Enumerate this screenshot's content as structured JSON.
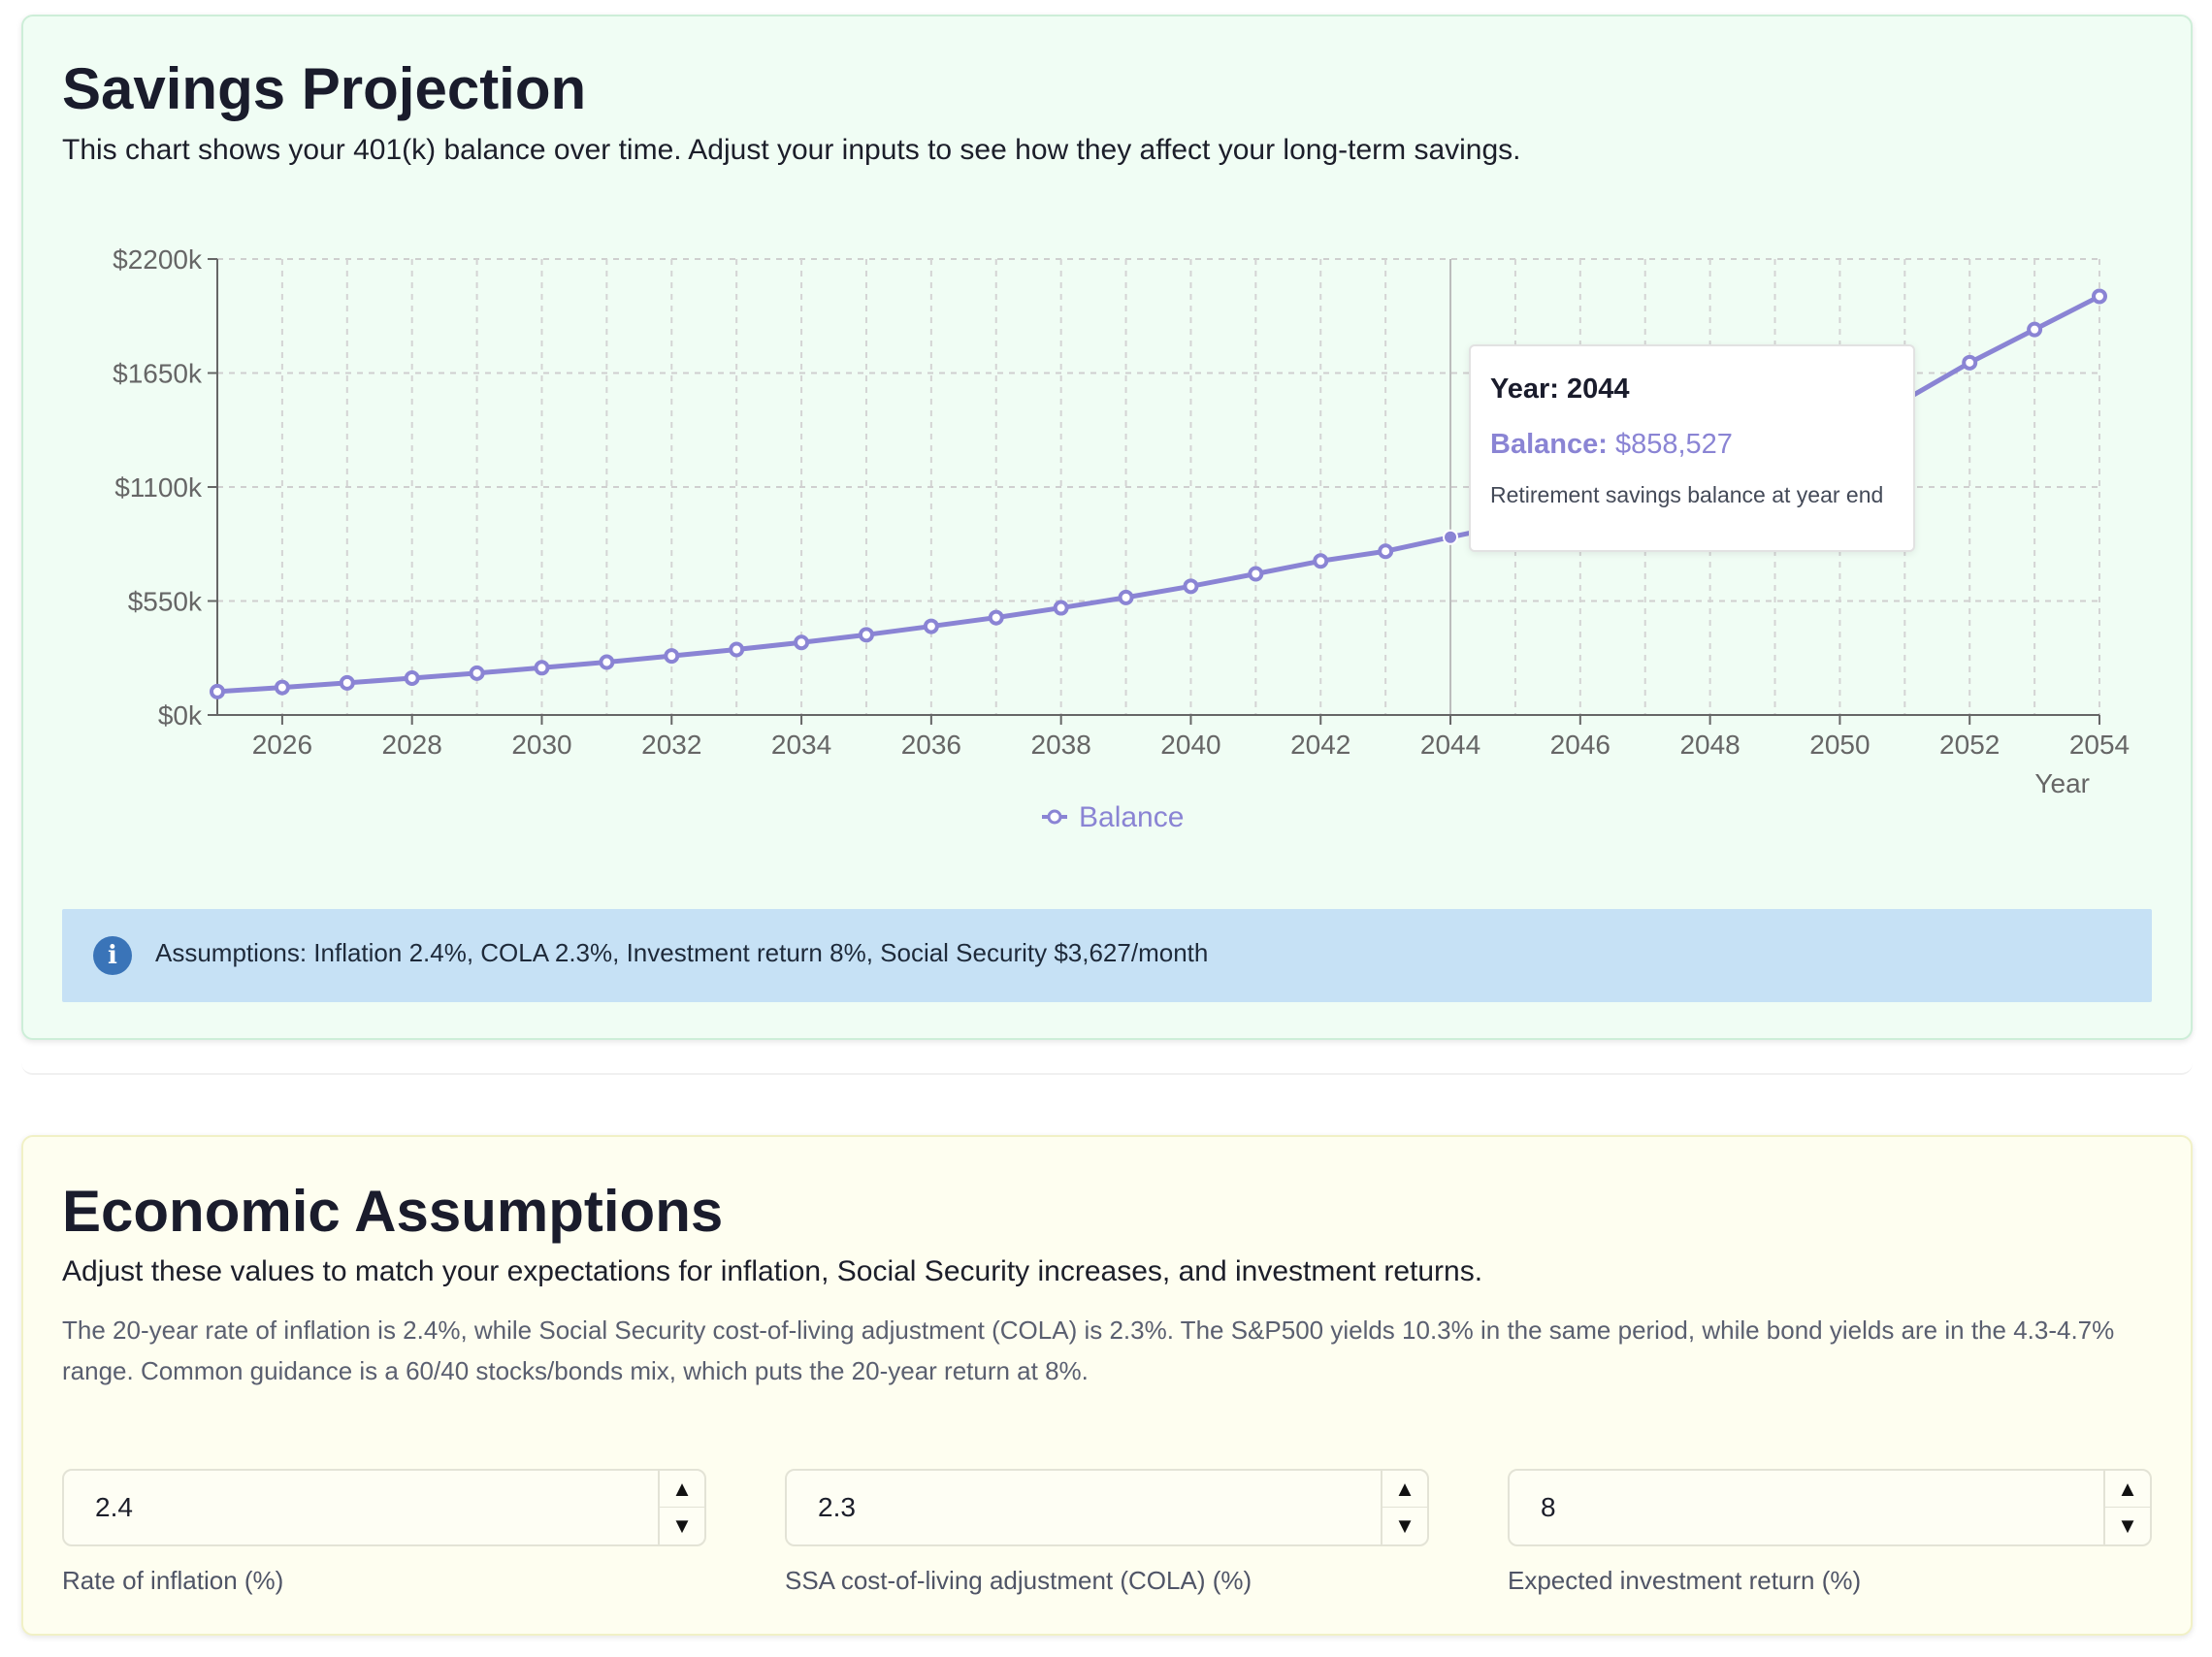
{
  "projection": {
    "title": "Savings Projection",
    "subtitle": "This chart shows your 401(k) balance over time. Adjust your inputs to see how they affect your long-term savings.",
    "tooltip": {
      "year_label": "Year: 2044",
      "balance_label": "Balance:",
      "balance_value": "$858,527",
      "note": "Retirement savings balance at year end"
    },
    "assumptions_text": "Assumptions: Inflation 2.4%, COLA 2.3%, Investment return 8%, Social Security $3,627/month",
    "info_icon": "info-icon"
  },
  "chart_data": {
    "type": "line",
    "title": "",
    "xlabel": "Year",
    "ylabel": "",
    "x": [
      2025,
      2026,
      2027,
      2028,
      2029,
      2030,
      2031,
      2032,
      2033,
      2034,
      2035,
      2036,
      2037,
      2038,
      2039,
      2040,
      2041,
      2042,
      2043,
      2044,
      2045,
      2046,
      2047,
      2048,
      2049,
      2050,
      2051,
      2052,
      2053,
      2054
    ],
    "series": [
      {
        "name": "Balance",
        "color": "#8a84d4",
        "values": [
          113,
          133,
          155,
          178,
          202,
          228,
          255,
          285,
          316,
          350,
          387,
          428,
          470,
          517,
          567,
          621,
          681,
          743,
          790,
          858,
          925,
          1000,
          1080,
          1170,
          1270,
          1380,
          1520,
          1700,
          1860,
          2020
        ]
      }
    ],
    "xlim": [
      2025,
      2054
    ],
    "ylim": [
      0,
      2200
    ],
    "x_ticks": [
      2026,
      2028,
      2030,
      2032,
      2034,
      2036,
      2038,
      2040,
      2042,
      2044,
      2046,
      2048,
      2050,
      2052,
      2054
    ],
    "y_ticks": [
      0,
      550,
      1100,
      1650,
      2200
    ],
    "y_tick_labels": [
      "$0k",
      "$550k",
      "$1100k",
      "$1650k",
      "$2200k"
    ],
    "grid": true,
    "legend": "bottom-center",
    "hover_x": 2044
  },
  "economic": {
    "title": "Economic Assumptions",
    "subtitle": "Adjust these values to match your expectations for inflation, Social Security increases, and investment returns.",
    "description": "The 20-year rate of inflation is 2.4%, while Social Security cost-of-living adjustment (COLA) is 2.3%. The S&P500 yields 10.3% in the same period, while bond yields are in the 4.3-4.7% range. Common guidance is a 60/40 stocks/bonds mix, which puts the 20-year return at 8%.",
    "inputs": [
      {
        "value": "2.4",
        "label": "Rate of inflation (%)"
      },
      {
        "value": "2.3",
        "label": "SSA cost-of-living adjustment (COLA) (%)"
      },
      {
        "value": "8",
        "label": "Expected investment return (%)"
      }
    ],
    "step_up": "▲",
    "step_down": "▼"
  }
}
